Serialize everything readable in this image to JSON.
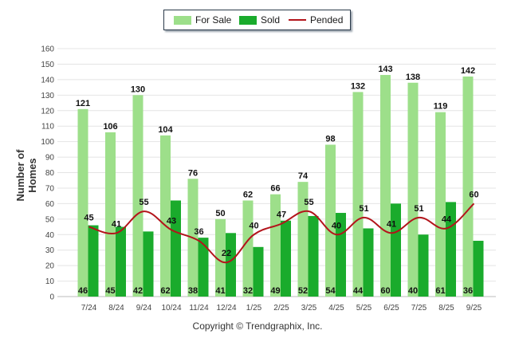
{
  "chart_data": {
    "type": "bar",
    "categories": [
      "7/24",
      "8/24",
      "9/24",
      "10/24",
      "11/24",
      "12/24",
      "1/25",
      "2/25",
      "3/25",
      "4/25",
      "5/25",
      "6/25",
      "7/25",
      "8/25",
      "9/25"
    ],
    "series": [
      {
        "name": "For Sale",
        "kind": "bar",
        "color": "#9ddf8a",
        "values": [
          121,
          106,
          130,
          104,
          76,
          50,
          62,
          66,
          74,
          98,
          132,
          143,
          138,
          119,
          142
        ]
      },
      {
        "name": "Sold",
        "kind": "bar",
        "color": "#1aab2c",
        "values": [
          46,
          45,
          42,
          62,
          38,
          41,
          32,
          49,
          52,
          54,
          44,
          60,
          40,
          61,
          36
        ]
      },
      {
        "name": "Pended",
        "kind": "line",
        "color": "#b3141b",
        "values": [
          45,
          41,
          55,
          43,
          36,
          22,
          40,
          47,
          55,
          40,
          51,
          41,
          51,
          44,
          60
        ]
      }
    ],
    "ylabel": "Number of Homes",
    "xlabel": "",
    "ylim": [
      0,
      160
    ],
    "yticks": [
      0,
      10,
      20,
      30,
      40,
      50,
      60,
      70,
      80,
      90,
      100,
      110,
      120,
      130,
      140,
      150,
      160
    ],
    "grid": true,
    "legend_position": "top-center"
  },
  "legend": [
    {
      "label": "For Sale",
      "color": "#9ddf8a"
    },
    {
      "label": "Sold",
      "color": "#1aab2c"
    },
    {
      "label": "Pended",
      "color": "#b3141b"
    }
  ],
  "footer": "Copyright © Trendgraphix, Inc."
}
